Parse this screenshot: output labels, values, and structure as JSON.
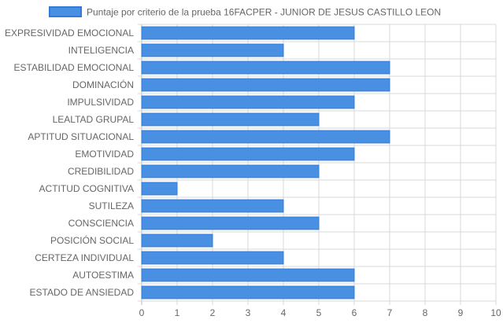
{
  "chart_data": {
    "type": "bar",
    "orientation": "horizontal",
    "legend": {
      "position": "top",
      "series_color": "#4a90e2",
      "series_border": "#2f7bd9"
    },
    "series": [
      {
        "name": "Puntaje por criterio de la prueba 16FACPER - JUNIOR DE JESUS CASTILLO LEON",
        "values": [
          6,
          4,
          7,
          7,
          6,
          5,
          7,
          6,
          5,
          1,
          4,
          5,
          2,
          4,
          6,
          6
        ]
      }
    ],
    "categories": [
      "EXPRESIVIDAD EMOCIONAL",
      "INTELIGENCIA",
      "ESTABILIDAD EMOCIONAL",
      "DOMINACIÓN",
      "IMPULSIVIDAD",
      "LEALTAD GRUPAL",
      "APTITUD SITUACIONAL",
      "EMOTIVIDAD",
      "CREDIBILIDAD",
      "ACTITUD COGNITIVA",
      "SUTILEZA",
      "CONSCIENCIA",
      "POSICIÓN SOCIAL",
      "CERTEZA INDIVIDUAL",
      "AUTOESTIMA",
      "ESTADO DE ANSIEDAD"
    ],
    "xlim": [
      0,
      10
    ],
    "x_ticks": [
      "0",
      "1",
      "2",
      "3",
      "4",
      "5",
      "6",
      "7",
      "8",
      "9",
      "10"
    ],
    "grid": true,
    "colors": {
      "grid": "#d9d9d9",
      "axis_text": "#666666"
    }
  }
}
